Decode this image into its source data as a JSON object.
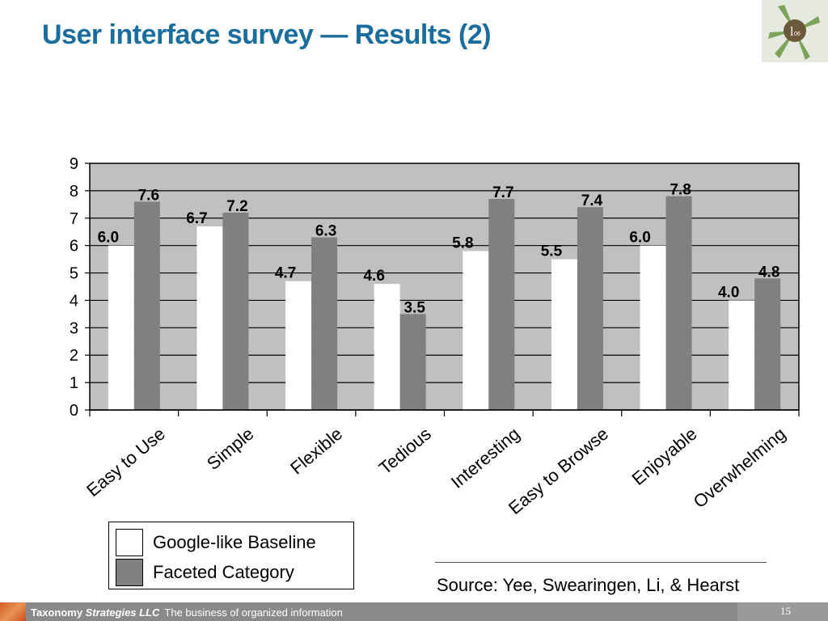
{
  "slide": {
    "title": "User interface survey — Results (2)"
  },
  "chart_data": {
    "type": "bar",
    "categories": [
      "Easy to Use",
      "Simple",
      "Flexible",
      "Tedious",
      "Interesting",
      "Easy to Browse",
      "Enjoyable",
      "Overwhelming"
    ],
    "series": [
      {
        "name": "Google-like Baseline",
        "values": [
          6.0,
          6.7,
          4.7,
          4.6,
          5.8,
          5.5,
          6.0,
          4.0
        ],
        "labels": [
          "6.0",
          "6.7",
          "4.7",
          "4.6",
          "5.8",
          "5.5",
          "6.0",
          "4.0"
        ],
        "color": "#ffffff"
      },
      {
        "name": "Faceted Category",
        "values": [
          7.6,
          7.2,
          6.3,
          3.5,
          7.7,
          7.4,
          7.8,
          4.8
        ],
        "labels": [
          "7.6",
          "7.2",
          "6.3",
          "3.5",
          "7.7",
          "7.4",
          "7.8",
          "4.8"
        ],
        "color": "#808080"
      }
    ],
    "ylim": [
      0,
      9
    ],
    "yticks": [
      "0",
      "1",
      "2",
      "3",
      "4",
      "5",
      "6",
      "7",
      "8",
      "9"
    ],
    "grid": true,
    "plot_background": "#c0c0c0",
    "legend_position": "bottom-left"
  },
  "legend": {
    "items": [
      {
        "label": "Google-like Baseline",
        "color": "#ffffff"
      },
      {
        "label": "Faceted Category",
        "color": "#808080"
      }
    ]
  },
  "source": {
    "text": "Source: Yee, Swearingen, Li, & Hearst"
  },
  "footer": {
    "company_plain": "Taxonomy ",
    "company_italic": "Strategies LLC",
    "tagline": "The business of organized information",
    "page_number": "15"
  },
  "colors": {
    "title": "#1a6e9e",
    "footer_bar": "#8a8a8a",
    "footer_accent": "#d25a1e"
  }
}
